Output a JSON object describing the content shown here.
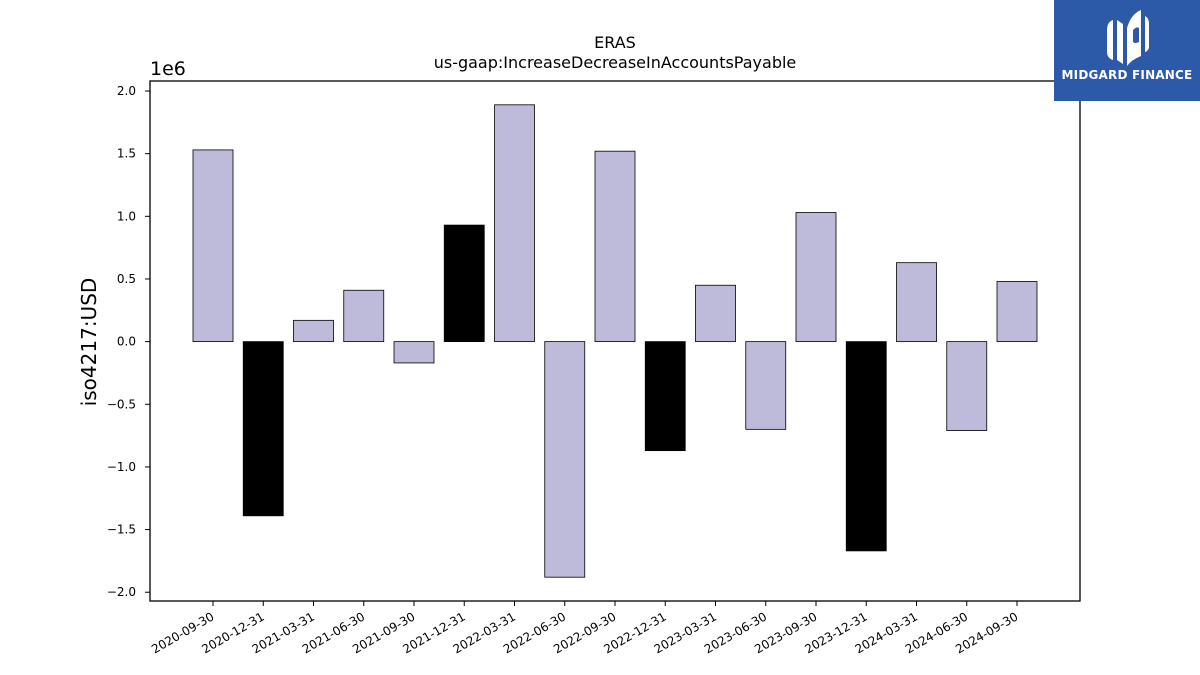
{
  "brand": {
    "name": "MIDGARD FINANCE",
    "bg_color": "#2d5aa8",
    "icon": "midgard-logo-icon"
  },
  "chart_data": {
    "type": "bar",
    "title": "ERAS",
    "subtitle": "us-gaap:IncreaseDecreaseInAccountsPayable",
    "xlabel": "",
    "ylabel": "iso4217:USD",
    "y_scale_label": "1e6",
    "ylim": [
      -2.07,
      2.08
    ],
    "y_ticks": [
      -2.0,
      -1.5,
      -1.0,
      -0.5,
      0.0,
      0.5,
      1.0,
      1.5,
      2.0
    ],
    "y_tick_labels": [
      "−2.0",
      "−1.5",
      "−1.0",
      "−0.5",
      "0.0",
      "0.5",
      "1.0",
      "1.5",
      "2.0"
    ],
    "grid": false,
    "categories": [
      "2020-09-30",
      "2020-12-31",
      "2021-03-31",
      "2021-06-30",
      "2021-09-30",
      "2021-12-31",
      "2022-03-31",
      "2022-06-30",
      "2022-09-30",
      "2022-12-31",
      "2023-03-31",
      "2023-06-30",
      "2023-09-30",
      "2023-12-31",
      "2024-03-31",
      "2024-06-30",
      "2024-09-30"
    ],
    "values": [
      1.53,
      -1.39,
      0.17,
      0.41,
      -0.17,
      0.93,
      1.89,
      -1.88,
      1.52,
      -0.87,
      0.45,
      -0.7,
      1.03,
      -1.67,
      0.63,
      -0.71,
      0.48
    ],
    "bar_colors": [
      "#bebad9",
      "#000000",
      "#bebad9",
      "#bebad9",
      "#bebad9",
      "#000000",
      "#bebad9",
      "#bebad9",
      "#bebad9",
      "#000000",
      "#bebad9",
      "#bebad9",
      "#bebad9",
      "#000000",
      "#bebad9",
      "#bebad9",
      "#bebad9"
    ]
  }
}
